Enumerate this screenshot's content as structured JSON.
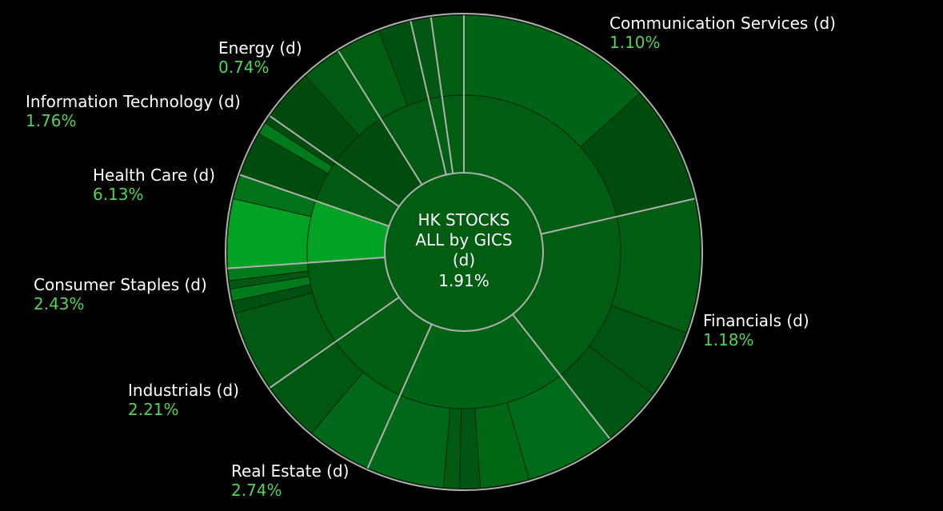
{
  "chart_data": {
    "type": "sunburst",
    "center": {
      "title_lines": [
        "HK STOCKS",
        "ALL by GICS",
        "(d)"
      ],
      "value": "1.91%"
    },
    "sectors": [
      {
        "name": "Communication Services (d)",
        "value": "1.10%",
        "start_deg": 0,
        "end_deg": 77,
        "color": "#005d12"
      },
      {
        "name": "Financials (d)",
        "value": "1.18%",
        "start_deg": 77,
        "end_deg": 142,
        "color": "#005d12"
      },
      {
        "name": "Real Estate (d)",
        "value": "2.74%",
        "start_deg": 142,
        "end_deg": 204,
        "color": "#006315"
      },
      {
        "name": "Industrials (d)",
        "value": "2.21%",
        "start_deg": 204,
        "end_deg": 235,
        "color": "#005d12"
      },
      {
        "name": "Consumer Staples (d)",
        "value": "2.43%",
        "start_deg": 235,
        "end_deg": 266,
        "color": "#005d12"
      },
      {
        "name": "Health Care (d)",
        "value": "6.13%",
        "start_deg": 266,
        "end_deg": 289,
        "color": "#02a325"
      },
      {
        "name": "Information Technology (d)",
        "value": "1.76%",
        "start_deg": 289,
        "end_deg": 305,
        "color": "#005a12"
      },
      {
        "name": "Energy (d)",
        "value": "0.74%",
        "start_deg": 305,
        "end_deg": 328,
        "color": "#004c0e"
      },
      {
        "name": "",
        "value": "",
        "start_deg": 328,
        "end_deg": 347,
        "color": "#005a12"
      },
      {
        "name": "",
        "value": "",
        "start_deg": 347,
        "end_deg": 352,
        "color": "#005d12"
      },
      {
        "name": "",
        "value": "",
        "start_deg": 352,
        "end_deg": 360,
        "color": "#005d12"
      }
    ],
    "industries": [
      {
        "start_deg": 0,
        "end_deg": 48,
        "color": "#006315"
      },
      {
        "start_deg": 48,
        "end_deg": 77,
        "color": "#004c0e"
      },
      {
        "start_deg": 77,
        "end_deg": 110,
        "color": "#005d12"
      },
      {
        "start_deg": 110,
        "end_deg": 127,
        "color": "#005312"
      },
      {
        "start_deg": 127,
        "end_deg": 142,
        "color": "#005512"
      },
      {
        "start_deg": 142,
        "end_deg": 164,
        "color": "#006b18"
      },
      {
        "start_deg": 164,
        "end_deg": 176,
        "color": "#006815"
      },
      {
        "start_deg": 176,
        "end_deg": 181,
        "color": "#005512"
      },
      {
        "start_deg": 181,
        "end_deg": 185,
        "color": "#005a12"
      },
      {
        "start_deg": 185,
        "end_deg": 220,
        "color": "#006818"
      },
      {
        "start_deg": 220,
        "end_deg": 235,
        "color": "#005712"
      },
      {
        "start_deg": 235,
        "end_deg": 255,
        "color": "#005a12"
      },
      {
        "start_deg": 255,
        "end_deg": 258,
        "color": "#005012"
      },
      {
        "start_deg": 258,
        "end_deg": 261,
        "color": "#007a1c"
      },
      {
        "start_deg": 261,
        "end_deg": 263,
        "color": "#005812"
      },
      {
        "start_deg": 263,
        "end_deg": 266,
        "color": "#007a1c"
      },
      {
        "start_deg": 266,
        "end_deg": 283,
        "color": "#02a325"
      },
      {
        "start_deg": 283,
        "end_deg": 289,
        "color": "#00731a"
      },
      {
        "start_deg": 289,
        "end_deg": 300,
        "color": "#004c0e"
      },
      {
        "start_deg": 300,
        "end_deg": 303,
        "color": "#007a1c"
      },
      {
        "start_deg": 303,
        "end_deg": 305,
        "color": "#004c0e"
      },
      {
        "start_deg": 305,
        "end_deg": 318,
        "color": "#004a0e"
      },
      {
        "start_deg": 318,
        "end_deg": 328,
        "color": "#005a12"
      },
      {
        "start_deg": 328,
        "end_deg": 339,
        "color": "#005d12"
      },
      {
        "start_deg": 339,
        "end_deg": 347,
        "color": "#005012"
      },
      {
        "start_deg": 347,
        "end_deg": 352,
        "color": "#005612"
      },
      {
        "start_deg": 352,
        "end_deg": 360,
        "color": "#005d12"
      }
    ],
    "colors": {
      "background": "#000000",
      "separator": "#b0b0b0",
      "label_name": "#ffffff",
      "label_value": "#52d35a"
    }
  }
}
